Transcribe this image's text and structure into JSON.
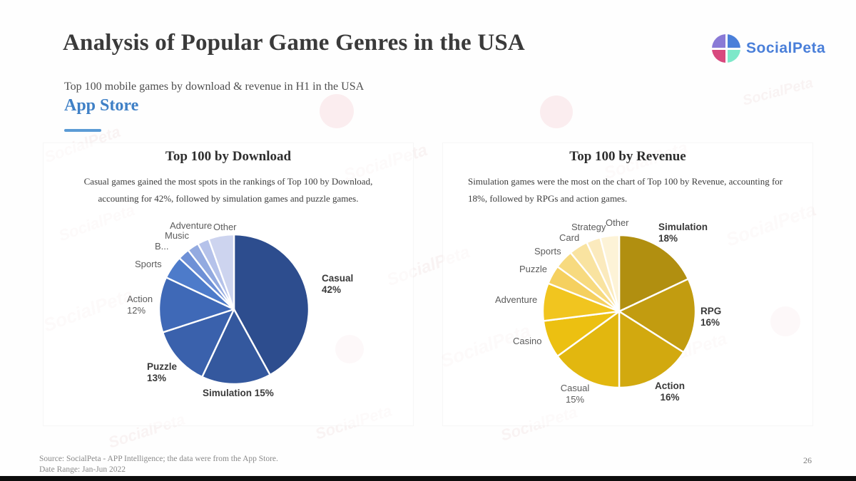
{
  "slide": {
    "title": "Analysis of Popular Game Genres in the USA",
    "subtitle": "Top 100 mobile games by download & revenue in H1 in the USA",
    "section_label": "App Store",
    "page_number": "26",
    "source_line1": "Source: SocialPeta - APP Intelligence; the data were from the App Store.",
    "source_line2": "Date Range: Jan-Jun 2022"
  },
  "brand": {
    "name": "SocialPeta",
    "text_color": "#4a7fd9",
    "logo_colors": {
      "top_left": "#8a7ad6",
      "top_right": "#4a7fd9",
      "bottom_left": "#d8497e",
      "bottom_right": "#7de8c9"
    }
  },
  "watermark_text": "SocialPeta",
  "accent_blue": "#3f80c6",
  "chart_data": [
    {
      "type": "pie",
      "title": "Top 100 by Download",
      "description": [
        "Casual games gained the most spots in the rankings of Top 100 by Download,",
        "accounting for 42%, followed by simulation games and puzzle games."
      ],
      "legend_position": "outside-labels",
      "slices": [
        {
          "label": "Casual",
          "value": 42,
          "show_pct": true,
          "color": "#2d4d8e"
        },
        {
          "label": "Simulation",
          "value": 15,
          "show_pct": true,
          "color": "#34589e"
        },
        {
          "label": "Puzzle",
          "value": 13,
          "show_pct": true,
          "color": "#3a61ac"
        },
        {
          "label": "Action",
          "value": 12,
          "show_pct": true,
          "color": "#3f69b7"
        },
        {
          "label": "Sports",
          "value": 5,
          "show_pct": false,
          "color": "#4d7bca"
        },
        {
          "label": "B...",
          "value": 2.5,
          "show_pct": false,
          "color": "#6e90d6"
        },
        {
          "label": "Music",
          "value": 2.5,
          "show_pct": false,
          "color": "#93aae0"
        },
        {
          "label": "Adventure",
          "value": 2.5,
          "show_pct": false,
          "color": "#b5c2ea"
        },
        {
          "label": "Other",
          "value": 5.5,
          "show_pct": false,
          "color": "#cdd4ef"
        }
      ]
    },
    {
      "type": "pie",
      "title": "Top 100 by Revenue",
      "description": [
        "Simulation games were the most on the chart of Top 100 by Revenue, accounting for",
        "18%, followed by RPGs and action games."
      ],
      "legend_position": "outside-labels",
      "slices": [
        {
          "label": "Simulation",
          "value": 18,
          "show_pct": true,
          "color": "#b18f10"
        },
        {
          "label": "RPG",
          "value": 16,
          "show_pct": true,
          "color": "#c29c10"
        },
        {
          "label": "Action",
          "value": 16,
          "show_pct": true,
          "color": "#d2a90f"
        },
        {
          "label": "Casual",
          "value": 15,
          "show_pct": true,
          "color": "#e2b70f"
        },
        {
          "label": "Casino",
          "value": 8,
          "show_pct": false,
          "color": "#ecc011"
        },
        {
          "label": "Adventure",
          "value": 8,
          "show_pct": false,
          "color": "#f1c51f"
        },
        {
          "label": "Puzzle",
          "value": 4,
          "show_pct": false,
          "color": "#f5d05f"
        },
        {
          "label": "Sports",
          "value": 4,
          "show_pct": false,
          "color": "#f7da7f"
        },
        {
          "label": "Card",
          "value": 4,
          "show_pct": false,
          "color": "#f9e3a0"
        },
        {
          "label": "Strategy",
          "value": 3,
          "show_pct": false,
          "color": "#fbeabd"
        },
        {
          "label": "Other",
          "value": 4,
          "show_pct": false,
          "color": "#fdf3d7"
        }
      ]
    }
  ]
}
